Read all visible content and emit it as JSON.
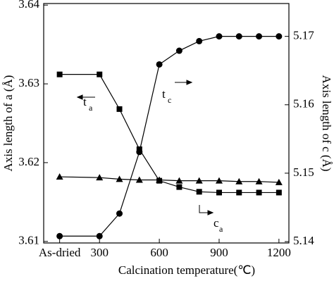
{
  "chart_data": {
    "type": "line",
    "x_label": "Calcination temperature(℃)",
    "y_label": "Axis length of a (Å)",
    "y2_label": "Axis length of c (Å)",
    "x": [
      100,
      300,
      400,
      500,
      600,
      700,
      800,
      900,
      1000,
      1100,
      1200
    ],
    "xlim": [
      20,
      1250
    ],
    "xticks": [
      {
        "value": 100,
        "label": "As-dried"
      },
      300,
      600,
      900,
      1200
    ],
    "ylim": [
      3.6098,
      3.6402
    ],
    "yticks": [
      3.61,
      3.62,
      3.63,
      3.64
    ],
    "y2lim": [
      5.1398,
      5.1748
    ],
    "y2ticks": [
      5.14,
      5.15,
      5.16,
      5.17
    ],
    "series": [
      {
        "name": "t_a",
        "marker": "square",
        "color": "#000000",
        "values": [
          3.6312,
          3.6312,
          3.6268,
          3.6217,
          3.6177,
          3.6169,
          3.6163,
          3.6162,
          3.6162,
          3.6162,
          3.6162
        ]
      },
      {
        "name": "c_a",
        "marker": "triangle",
        "color": "#000000",
        "values": [
          3.6182,
          3.6181,
          3.6179,
          3.6178,
          3.6178,
          3.6177,
          3.6177,
          3.6177,
          3.6176,
          3.6176,
          3.6175
        ]
      },
      {
        "name": "t_c",
        "marker": "circle",
        "color": "#000000",
        "axis": "y2",
        "values": [
          5.1408,
          5.1408,
          5.1441,
          5.1531,
          5.1659,
          5.1679,
          5.1693,
          5.17,
          5.17,
          5.17,
          5.17
        ]
      }
    ],
    "annotations": [
      {
        "text": "t",
        "sub": "a"
      },
      {
        "text": "t",
        "sub": "c"
      },
      {
        "text": "c",
        "sub": "a"
      }
    ]
  }
}
